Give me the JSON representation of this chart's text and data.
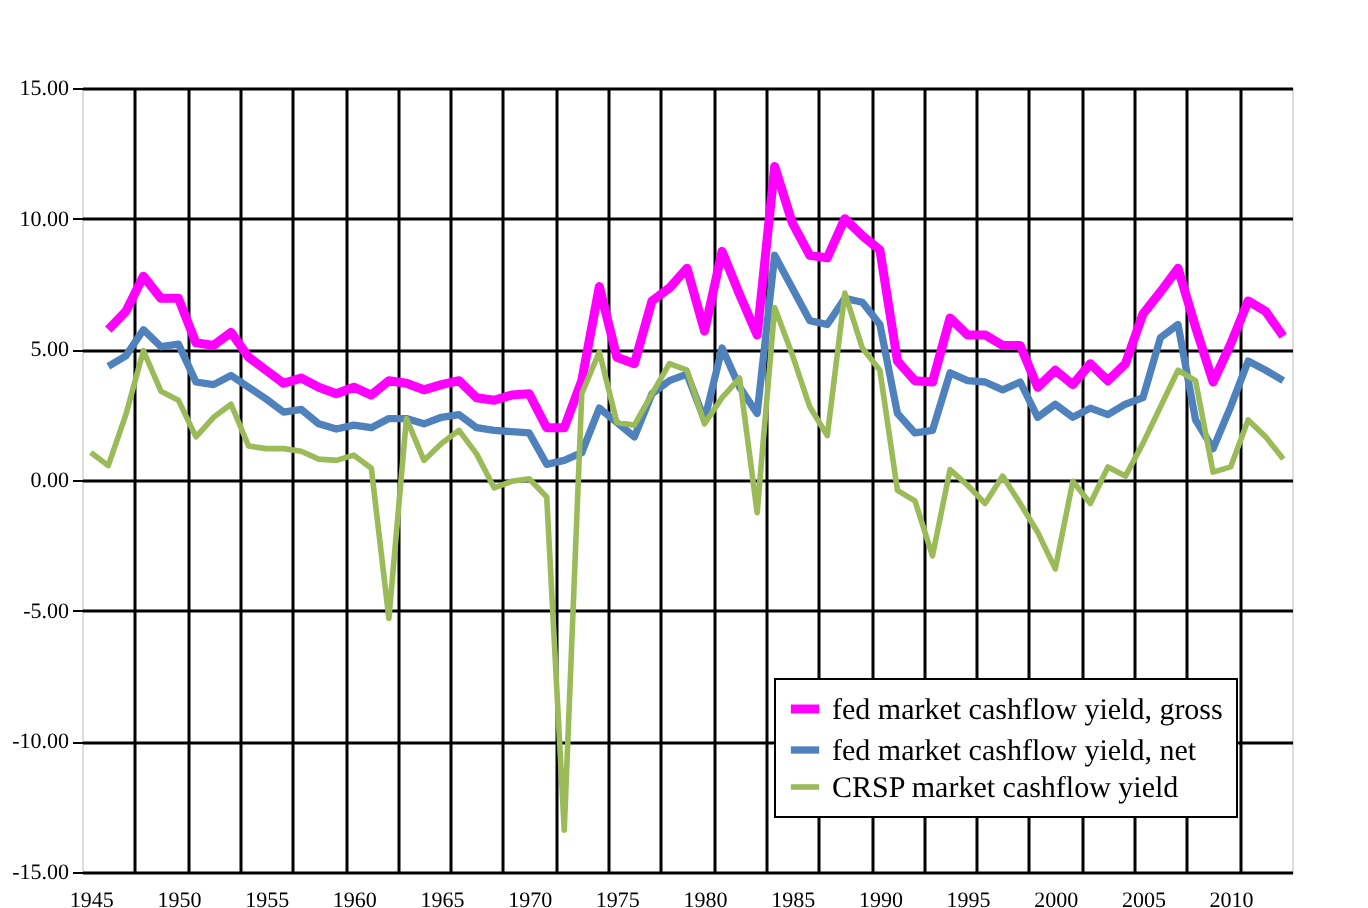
{
  "chart_data": {
    "type": "line",
    "x": [
      1945,
      1946,
      1947,
      1948,
      1949,
      1950,
      1951,
      1952,
      1953,
      1954,
      1955,
      1956,
      1957,
      1958,
      1959,
      1960,
      1961,
      1962,
      1963,
      1964,
      1965,
      1966,
      1967,
      1968,
      1969,
      1970,
      1971,
      1972,
      1973,
      1974,
      1975,
      1976,
      1977,
      1978,
      1979,
      1980,
      1981,
      1982,
      1983,
      1984,
      1985,
      1986,
      1987,
      1988,
      1989,
      1990,
      1991,
      1992,
      1993,
      1994,
      1995,
      1996,
      1997,
      1998,
      1999,
      2000,
      2001,
      2002,
      2003,
      2004,
      2005,
      2006,
      2007,
      2008,
      2009,
      2010,
      2011,
      2012,
      2013
    ],
    "series": [
      {
        "name": "fed market cashflow yield, gross",
        "color": "#ff00ff",
        "values": [
          null,
          5.75,
          6.45,
          7.8,
          6.95,
          6.95,
          5.25,
          5.15,
          5.65,
          4.7,
          4.2,
          3.7,
          3.9,
          3.55,
          3.3,
          3.55,
          3.25,
          3.8,
          3.7,
          3.45,
          3.65,
          3.8,
          3.15,
          3.05,
          3.25,
          3.3,
          2.0,
          2.0,
          3.8,
          7.4,
          4.7,
          4.45,
          6.85,
          7.35,
          8.1,
          5.7,
          8.75,
          7.1,
          5.55,
          12.0,
          9.85,
          8.6,
          8.5,
          10.0,
          9.35,
          8.8,
          4.55,
          3.8,
          3.75,
          6.2,
          5.55,
          5.55,
          5.15,
          5.15,
          3.55,
          4.2,
          3.65,
          4.45,
          3.8,
          4.45,
          6.35,
          7.2,
          8.1,
          5.85,
          3.75,
          5.2,
          6.85,
          6.45,
          5.5
        ]
      },
      {
        "name": "fed market cashflow yield, net",
        "color": "#4f81bd",
        "values": [
          null,
          4.35,
          4.75,
          5.75,
          5.1,
          5.2,
          3.75,
          3.65,
          4.0,
          3.55,
          3.1,
          2.6,
          2.7,
          2.15,
          1.95,
          2.1,
          2.0,
          2.35,
          2.35,
          2.15,
          2.4,
          2.5,
          2.0,
          1.9,
          1.85,
          1.8,
          0.6,
          0.75,
          1.05,
          2.75,
          2.2,
          1.65,
          3.3,
          3.8,
          4.05,
          2.3,
          5.05,
          3.55,
          2.55,
          8.6,
          7.35,
          6.1,
          5.95,
          6.95,
          6.8,
          5.95,
          2.55,
          1.8,
          1.9,
          4.1,
          3.8,
          3.75,
          3.45,
          3.75,
          2.4,
          2.9,
          2.4,
          2.75,
          2.5,
          2.9,
          3.15,
          5.45,
          5.95,
          2.3,
          1.2,
          2.8,
          4.55,
          4.2,
          3.8
        ]
      },
      {
        "name": "CRSP market cashflow yield",
        "color": "#9bbb59",
        "values": [
          1.05,
          0.55,
          2.5,
          4.95,
          3.4,
          3.05,
          1.65,
          2.4,
          2.9,
          1.3,
          1.2,
          1.2,
          1.1,
          0.8,
          0.75,
          0.95,
          0.45,
          -5.3,
          2.35,
          0.75,
          1.4,
          1.9,
          1.0,
          -0.3,
          -0.05,
          0.05,
          -0.65,
          -13.4,
          3.3,
          4.9,
          2.2,
          2.1,
          3.3,
          4.45,
          4.2,
          2.15,
          3.15,
          3.9,
          -1.25,
          6.6,
          4.8,
          2.8,
          1.7,
          7.15,
          5.05,
          4.2,
          -0.4,
          -0.8,
          -2.9,
          0.4,
          -0.2,
          -0.9,
          0.15,
          -0.9,
          -2.0,
          -3.4,
          -0.05,
          -0.9,
          0.5,
          0.15,
          1.4,
          2.8,
          4.2,
          3.8,
          0.3,
          0.5,
          2.3,
          1.65,
          0.8
        ]
      }
    ],
    "xlim": [
      1944.5,
      2013.5
    ],
    "xticks": [
      1945,
      1950,
      1955,
      1960,
      1965,
      1970,
      1975,
      1980,
      1985,
      1990,
      1995,
      2000,
      2005,
      2010,
      {
        "value": 1947.5,
        "label": null
      },
      {
        "value": 1950.5,
        "label": null
      },
      {
        "value": 1953.5,
        "label": null
      },
      {
        "value": 1956.5,
        "label": null
      },
      {
        "value": 1959.5,
        "label": null
      },
      {
        "value": 1962.5,
        "label": null
      },
      {
        "value": 1965.5,
        "label": null
      },
      {
        "value": 1968.5,
        "label": null
      },
      {
        "value": 1971.5,
        "label": null
      },
      {
        "value": 1974.5,
        "label": null
      },
      {
        "value": 1977.5,
        "label": null
      },
      {
        "value": 1980.5,
        "label": null
      },
      {
        "value": 1983.5,
        "label": null
      },
      {
        "value": 1986.5,
        "label": null
      },
      {
        "value": 1989.5,
        "label": null
      },
      {
        "value": 1992.5,
        "label": null
      },
      {
        "value": 1995.5,
        "label": null
      },
      {
        "value": 1998.5,
        "label": null
      },
      {
        "value": 2001.5,
        "label": null
      },
      {
        "value": 2004.5,
        "label": null
      },
      {
        "value": 2007.5,
        "label": null
      },
      {
        "value": 2010.5,
        "label": null
      }
    ],
    "ylim": [
      -15,
      15
    ],
    "yticks": [
      {
        "value": -15,
        "label": "-15.00"
      },
      {
        "value": -10,
        "label": "-10.00"
      },
      {
        "value": -5,
        "label": "-5.00"
      },
      {
        "value": 0,
        "label": "0.00"
      },
      {
        "value": 5,
        "label": "5.00"
      },
      {
        "value": 10,
        "label": "10.00"
      },
      {
        "value": 15,
        "label": "15.00"
      }
    ],
    "grid": true,
    "legend": "bottom right",
    "marker": "none",
    "line_style": "solid"
  }
}
